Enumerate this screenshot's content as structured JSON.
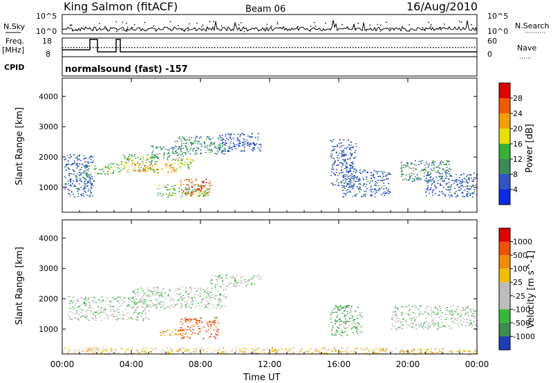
{
  "header": {
    "title": "King Salmon (fitACF)",
    "beam": "Beam 06",
    "date": "16/Aug/2010"
  },
  "param_panel": {
    "nsky_label": "N.Sky",
    "nsearch_label": "N.Search",
    "noise_ticks": [
      "10^5",
      "10^0"
    ],
    "freq_label": "Freq.",
    "freq_unit": "[MHz]",
    "freq_ticks": [
      "18",
      "8"
    ],
    "nave_label": "Nave",
    "nave_ticks": [
      "60",
      "0"
    ],
    "cpid_label": "CPID",
    "cpid_text": "normalsound (fast) -157"
  },
  "chart_data": [
    {
      "type": "heatmap",
      "name": "power",
      "ylabel": "Slant Range [km]",
      "xlabel": "",
      "ylim": [
        180,
        4600
      ],
      "xlim": [
        0,
        24
      ],
      "yticks": [
        "1000",
        "2000",
        "3000",
        "4000"
      ],
      "colorbar": {
        "label": "Power [dB]",
        "ticks": [
          "4",
          "8",
          "12",
          "16",
          "20",
          "24",
          "28"
        ],
        "colors": [
          "#0a28e8",
          "#2f55c8",
          "#3a8a5a",
          "#35b035",
          "#e6e000",
          "#f5a000",
          "#f55a00",
          "#e00000"
        ]
      },
      "regions": [
        {
          "t": [
            0.1,
            1.8
          ],
          "r": [
            700,
            2100
          ],
          "level": 1
        },
        {
          "t": [
            0.8,
            1.6
          ],
          "r": [
            1200,
            1800
          ],
          "level": 2
        },
        {
          "t": [
            1.8,
            3.4
          ],
          "r": [
            1450,
            1800
          ],
          "level": 3
        },
        {
          "t": [
            3.4,
            5.5
          ],
          "r": [
            1500,
            2100
          ],
          "level": 3
        },
        {
          "t": [
            4.0,
            6.6
          ],
          "r": [
            1500,
            1800
          ],
          "level": 5
        },
        {
          "t": [
            5.0,
            7.0
          ],
          "r": [
            1900,
            2400
          ],
          "level": 2
        },
        {
          "t": [
            6.5,
            9.5
          ],
          "r": [
            2100,
            2700
          ],
          "level": 2
        },
        {
          "t": [
            6.2,
            7.6
          ],
          "r": [
            1600,
            2000
          ],
          "level": 4
        },
        {
          "t": [
            5.5,
            8.5
          ],
          "r": [
            700,
            1100
          ],
          "level": 3
        },
        {
          "t": [
            6.8,
            8.6
          ],
          "r": [
            750,
            1300
          ],
          "level": 6
        },
        {
          "t": [
            9.0,
            11.5
          ],
          "r": [
            2200,
            2800
          ],
          "level": 1
        },
        {
          "t": [
            15.5,
            17.0
          ],
          "r": [
            1000,
            2600
          ],
          "level": 1
        },
        {
          "t": [
            16.2,
            19.0
          ],
          "r": [
            700,
            1600
          ],
          "level": 1
        },
        {
          "t": [
            19.5,
            22.5
          ],
          "r": [
            1200,
            1900
          ],
          "level": 2
        },
        {
          "t": [
            21.0,
            24.0
          ],
          "r": [
            700,
            1500
          ],
          "level": 1
        }
      ]
    },
    {
      "type": "heatmap",
      "name": "velocity",
      "ylabel": "Slant Range [km]",
      "xlabel": "Time UT",
      "ylim": [
        180,
        4600
      ],
      "xlim": [
        0,
        24
      ],
      "xticks": [
        "00:00",
        "04:00",
        "08:00",
        "12:00",
        "16:00",
        "20:00",
        "00:00"
      ],
      "yticks": [
        "1000",
        "2000",
        "3000",
        "4000"
      ],
      "colorbar": {
        "label": "Velocity [m s^-1]",
        "ticks": [
          "1000",
          "500",
          "100",
          "25",
          "-25",
          "-100",
          "-500",
          "-1000"
        ],
        "colors": [
          "#1c3cb8",
          "#3c8c50",
          "#36b83a",
          "#bdbdbd",
          "#bdbdbd",
          "#f0c000",
          "#f08c00",
          "#f05000",
          "#e00000"
        ]
      },
      "regions": [
        {
          "t": [
            0.3,
            5.0
          ],
          "r": [
            1300,
            2100
          ],
          "level": 3
        },
        {
          "t": [
            4.0,
            9.5
          ],
          "r": [
            1700,
            2400
          ],
          "level": 3
        },
        {
          "t": [
            8.5,
            11.5
          ],
          "r": [
            2400,
            2800
          ],
          "level": 3
        },
        {
          "t": [
            6.8,
            9.0
          ],
          "r": [
            700,
            1400
          ],
          "level": 7
        },
        {
          "t": [
            5.5,
            7.0
          ],
          "r": [
            800,
            1000
          ],
          "level": 6
        },
        {
          "t": [
            15.5,
            17.3
          ],
          "r": [
            800,
            1800
          ],
          "level": 2
        },
        {
          "t": [
            19.0,
            24.0
          ],
          "r": [
            1000,
            1800
          ],
          "level": 3
        },
        {
          "t": [
            0.0,
            24.0
          ],
          "r": [
            180,
            400
          ],
          "level": 5
        }
      ]
    }
  ]
}
